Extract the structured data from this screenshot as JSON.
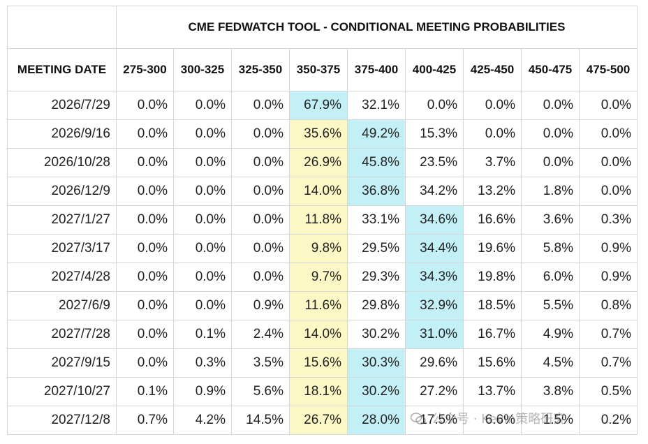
{
  "chart_data": {
    "type": "table",
    "title": "CME FEDWATCH TOOL - CONDITIONAL MEETING PROBABILITIES",
    "row_header_label": "MEETING DATE",
    "columns": [
      "275-300",
      "300-325",
      "325-350",
      "350-375",
      "375-400",
      "400-425",
      "425-450",
      "450-475",
      "475-500"
    ],
    "rows": [
      {
        "date": "2026/7/29",
        "values": [
          "0.0%",
          "0.0%",
          "0.0%",
          "67.9%",
          "32.1%",
          "0.0%",
          "0.0%",
          "0.0%",
          "0.0%"
        ],
        "highlight": {
          "blue": 3,
          "yellow": null
        }
      },
      {
        "date": "2026/9/16",
        "values": [
          "0.0%",
          "0.0%",
          "0.0%",
          "35.6%",
          "49.2%",
          "15.3%",
          "0.0%",
          "0.0%",
          "0.0%"
        ],
        "highlight": {
          "blue": 4,
          "yellow": 3
        }
      },
      {
        "date": "2026/10/28",
        "values": [
          "0.0%",
          "0.0%",
          "0.0%",
          "26.9%",
          "45.8%",
          "23.5%",
          "3.7%",
          "0.0%",
          "0.0%"
        ],
        "highlight": {
          "blue": 4,
          "yellow": 3
        }
      },
      {
        "date": "2026/12/9",
        "values": [
          "0.0%",
          "0.0%",
          "0.0%",
          "14.0%",
          "36.8%",
          "34.2%",
          "13.2%",
          "1.8%",
          "0.0%"
        ],
        "highlight": {
          "blue": 4,
          "yellow": 3
        }
      },
      {
        "date": "2027/1/27",
        "values": [
          "0.0%",
          "0.0%",
          "0.0%",
          "11.8%",
          "33.1%",
          "34.6%",
          "16.6%",
          "3.6%",
          "0.3%"
        ],
        "highlight": {
          "blue": 5,
          "yellow": 3
        }
      },
      {
        "date": "2027/3/17",
        "values": [
          "0.0%",
          "0.0%",
          "0.0%",
          "9.8%",
          "29.5%",
          "34.4%",
          "19.6%",
          "5.8%",
          "0.9%"
        ],
        "highlight": {
          "blue": 5,
          "yellow": 3
        }
      },
      {
        "date": "2027/4/28",
        "values": [
          "0.0%",
          "0.0%",
          "0.0%",
          "9.7%",
          "29.3%",
          "34.3%",
          "19.8%",
          "6.0%",
          "0.9%"
        ],
        "highlight": {
          "blue": 5,
          "yellow": 3
        }
      },
      {
        "date": "2027/6/9",
        "values": [
          "0.0%",
          "0.0%",
          "0.9%",
          "11.6%",
          "29.8%",
          "32.9%",
          "18.5%",
          "5.5%",
          "0.8%"
        ],
        "highlight": {
          "blue": 5,
          "yellow": 3
        }
      },
      {
        "date": "2027/7/28",
        "values": [
          "0.0%",
          "0.1%",
          "2.4%",
          "14.0%",
          "30.2%",
          "31.0%",
          "16.7%",
          "4.9%",
          "0.7%"
        ],
        "highlight": {
          "blue": 5,
          "yellow": 3
        }
      },
      {
        "date": "2027/9/15",
        "values": [
          "0.0%",
          "0.3%",
          "3.5%",
          "15.6%",
          "30.3%",
          "29.6%",
          "15.6%",
          "4.5%",
          "0.7%"
        ],
        "highlight": {
          "blue": 4,
          "yellow": 3
        }
      },
      {
        "date": "2027/10/27",
        "values": [
          "0.1%",
          "0.9%",
          "5.6%",
          "18.1%",
          "30.2%",
          "27.2%",
          "13.7%",
          "3.8%",
          "0.5%"
        ],
        "highlight": {
          "blue": 4,
          "yellow": 3
        }
      },
      {
        "date": "2027/12/8",
        "values": [
          "0.7%",
          "4.2%",
          "14.5%",
          "26.7%",
          "28.0%",
          "17.5%",
          "6.6%",
          "1.5%",
          "0.2%"
        ],
        "highlight": {
          "blue": 4,
          "yellow": 3
        }
      }
    ]
  },
  "colors": {
    "blue": "#c3f0f7",
    "yellow": "#fbf8c6",
    "border": "#d6d6d6"
  },
  "watermark": {
    "text": "公众号 · Kevin策略研究",
    "icon": "wechat-icon"
  }
}
